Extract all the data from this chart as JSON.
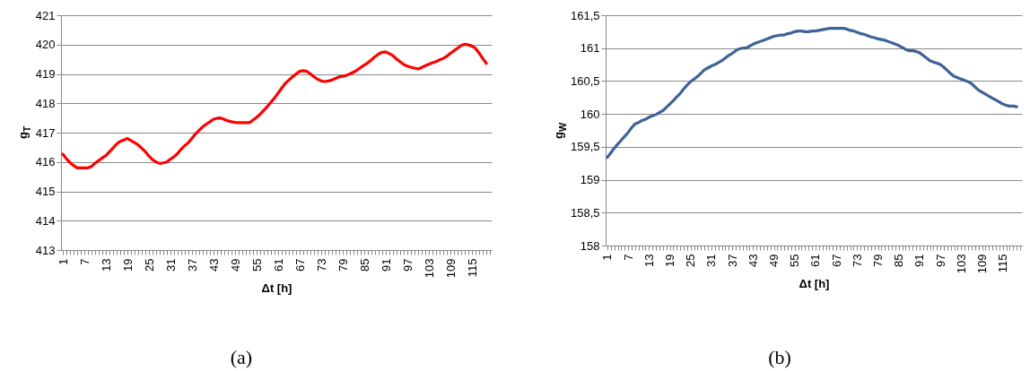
{
  "chart_data": [
    {
      "type": "line",
      "xlabel": "Δt [h]",
      "ylabel": "g$_{T}$",
      "annotations": [
        "(a)"
      ],
      "categories": [
        "1",
        null,
        null,
        null,
        null,
        null,
        "7",
        null,
        null,
        null,
        null,
        null,
        "13",
        null,
        null,
        null,
        null,
        null,
        "19",
        null,
        null,
        null,
        null,
        null,
        "25",
        null,
        null,
        null,
        null,
        null,
        "31",
        null,
        null,
        null,
        null,
        null,
        "37",
        null,
        null,
        null,
        null,
        null,
        "43",
        null,
        null,
        null,
        null,
        null,
        "49",
        null,
        null,
        null,
        null,
        null,
        "55",
        null,
        null,
        null,
        null,
        null,
        "61",
        null,
        null,
        null,
        null,
        null,
        "67",
        null,
        null,
        null,
        null,
        null,
        "73",
        null,
        null,
        null,
        null,
        null,
        "79",
        null,
        null,
        null,
        null,
        null,
        "85",
        null,
        null,
        null,
        null,
        null,
        "91",
        null,
        null,
        null,
        null,
        null,
        "97",
        null,
        null,
        null,
        null,
        null,
        "103",
        null,
        null,
        null,
        null,
        null,
        "109",
        null,
        null,
        null,
        null,
        null,
        "115",
        null,
        null,
        null,
        null,
        null
      ],
      "series": [
        {
          "color": "#ff0000",
          "values": [
            416.27,
            416.11,
            415.98,
            415.88,
            415.8,
            415.8,
            415.8,
            415.8,
            415.85,
            415.96,
            416.05,
            416.14,
            416.22,
            416.35,
            416.48,
            416.61,
            416.7,
            416.75,
            416.8,
            416.73,
            416.66,
            416.58,
            416.47,
            416.35,
            416.2,
            416.08,
            416.0,
            415.95,
            415.97,
            416.0,
            416.1,
            416.18,
            416.29,
            416.44,
            416.56,
            416.66,
            416.81,
            416.96,
            417.08,
            417.2,
            417.29,
            417.37,
            417.46,
            417.49,
            417.5,
            417.45,
            417.4,
            417.37,
            417.35,
            417.34,
            417.34,
            417.34,
            417.34,
            417.43,
            417.52,
            417.63,
            417.76,
            417.89,
            418.04,
            418.18,
            418.35,
            418.52,
            418.68,
            418.79,
            418.9,
            419.0,
            419.09,
            419.11,
            419.09,
            419.0,
            418.9,
            418.82,
            418.76,
            418.74,
            418.76,
            418.79,
            418.85,
            418.9,
            418.92,
            418.95,
            419.0,
            419.06,
            419.13,
            419.22,
            419.3,
            419.38,
            419.48,
            419.59,
            419.68,
            419.74,
            419.75,
            419.69,
            419.62,
            419.51,
            419.41,
            419.32,
            419.27,
            419.23,
            419.2,
            419.17,
            419.22,
            419.28,
            419.33,
            419.38,
            419.42,
            419.48,
            419.53,
            419.6,
            419.7,
            419.79,
            419.88,
            419.97,
            420.01,
            419.99,
            419.95,
            419.87,
            419.71,
            419.53,
            419.36,
            null
          ]
        }
      ],
      "ylim": [
        413,
        421
      ],
      "yticks": [
        413,
        414,
        415,
        416,
        417,
        418,
        419,
        420,
        421
      ],
      "grid": "y",
      "line_style": "solid"
    },
    {
      "type": "line",
      "xlabel": "Δt [h]",
      "ylabel": "g$_{W}$",
      "annotations": [
        "(b)"
      ],
      "categories": [
        "1",
        null,
        null,
        null,
        null,
        null,
        "7",
        null,
        null,
        null,
        null,
        null,
        "13",
        null,
        null,
        null,
        null,
        null,
        "19",
        null,
        null,
        null,
        null,
        null,
        "25",
        null,
        null,
        null,
        null,
        null,
        "31",
        null,
        null,
        null,
        null,
        null,
        "37",
        null,
        null,
        null,
        null,
        null,
        "43",
        null,
        null,
        null,
        null,
        null,
        "49",
        null,
        null,
        null,
        null,
        null,
        "55",
        null,
        null,
        null,
        null,
        null,
        "61",
        null,
        null,
        null,
        null,
        null,
        "67",
        null,
        null,
        null,
        null,
        null,
        "73",
        null,
        null,
        null,
        null,
        null,
        "79",
        null,
        null,
        null,
        null,
        null,
        "85",
        null,
        null,
        null,
        null,
        null,
        "91",
        null,
        null,
        null,
        null,
        null,
        "97",
        null,
        null,
        null,
        null,
        null,
        "103",
        null,
        null,
        null,
        null,
        null,
        "109",
        null,
        null,
        null,
        null,
        null,
        "115",
        null,
        null,
        null,
        null,
        null
      ],
      "series": [
        {
          "color": "#3e6396",
          "values": [
            159.34,
            159.41,
            159.48,
            159.54,
            159.6,
            159.66,
            159.72,
            159.79,
            159.85,
            159.87,
            159.9,
            159.92,
            159.95,
            159.97,
            159.99,
            160.02,
            160.05,
            160.1,
            160.15,
            160.2,
            160.26,
            160.31,
            160.38,
            160.44,
            160.49,
            160.53,
            160.57,
            160.62,
            160.67,
            160.7,
            160.73,
            160.75,
            160.78,
            160.81,
            160.85,
            160.89,
            160.92,
            160.96,
            160.99,
            161.0,
            161.0,
            161.03,
            161.06,
            161.08,
            161.1,
            161.12,
            161.14,
            161.16,
            161.18,
            161.19,
            161.2,
            161.2,
            161.22,
            161.23,
            161.25,
            161.26,
            161.26,
            161.25,
            161.25,
            161.26,
            161.26,
            161.27,
            161.28,
            161.29,
            161.3,
            161.3,
            161.3,
            161.3,
            161.3,
            161.29,
            161.27,
            161.26,
            161.24,
            161.22,
            161.21,
            161.19,
            161.17,
            161.16,
            161.14,
            161.13,
            161.12,
            161.1,
            161.08,
            161.06,
            161.04,
            161.01,
            160.98,
            160.96,
            160.96,
            160.95,
            160.93,
            160.89,
            160.85,
            160.81,
            160.79,
            160.77,
            160.75,
            160.71,
            160.66,
            160.61,
            160.57,
            160.55,
            160.53,
            160.51,
            160.49,
            160.46,
            160.41,
            160.36,
            160.33,
            160.3,
            160.27,
            160.24,
            160.21,
            160.18,
            160.15,
            160.13,
            160.12,
            160.12,
            160.11,
            null
          ]
        }
      ],
      "ylim": [
        158,
        161.5
      ],
      "yticks": [
        158,
        {
          "value": 158.5,
          "label": "158,5"
        },
        159,
        {
          "value": 159.5,
          "label": "159,5"
        },
        160,
        {
          "value": 160.5,
          "label": "160,5"
        },
        161,
        {
          "value": 161.5,
          "label": "161,5"
        }
      ],
      "grid": "y",
      "line_style": "solid"
    }
  ]
}
